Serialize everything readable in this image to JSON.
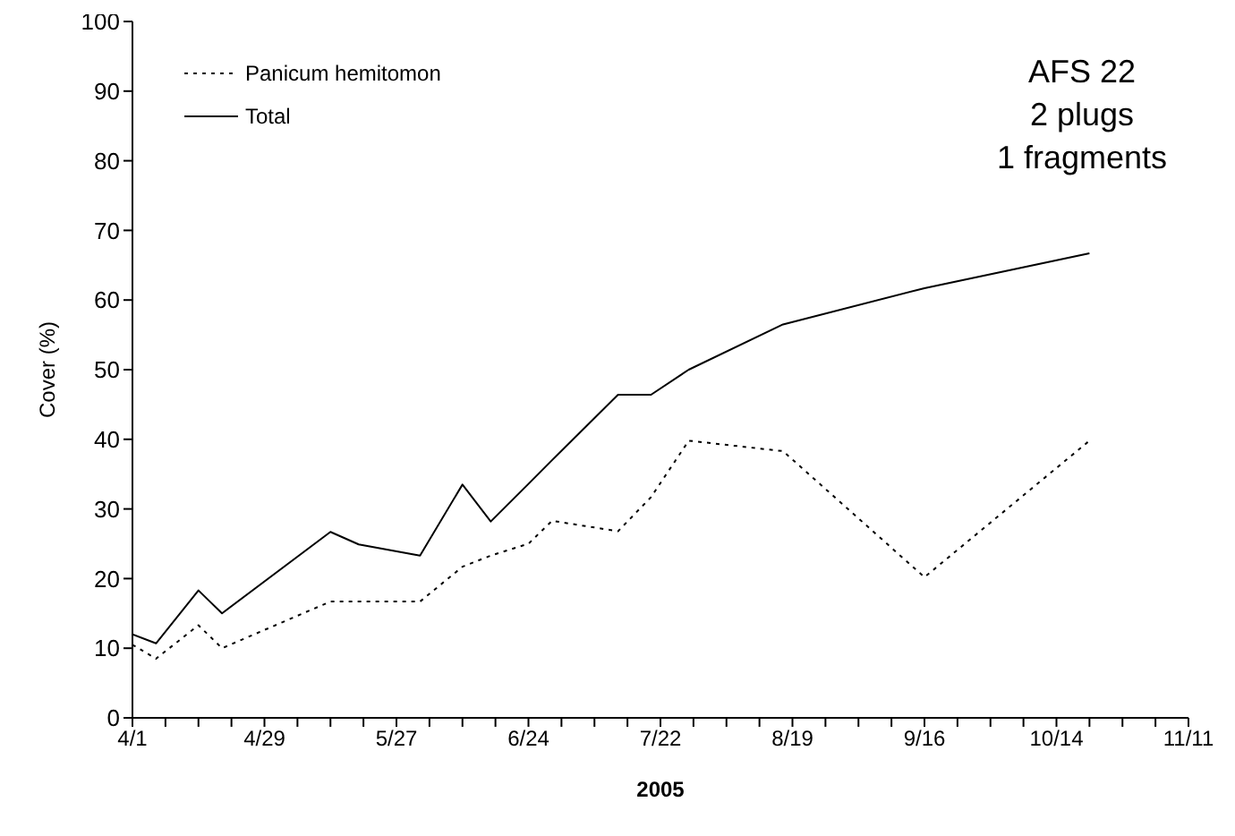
{
  "chart_data": {
    "type": "line",
    "xlabel": "2005",
    "ylabel": "Cover (%)",
    "annotations": [
      "AFS 22",
      "2 plugs",
      "1 fragments"
    ],
    "x": [
      "2005-04-01",
      "2005-04-06",
      "2005-04-15",
      "2005-04-20",
      "2005-05-13",
      "2005-05-19",
      "2005-06-01",
      "2005-06-10",
      "2005-06-16",
      "2005-06-24",
      "2005-06-29",
      "2005-07-13",
      "2005-07-20",
      "2005-07-28",
      "2005-08-17",
      "2005-09-16",
      "2005-10-21"
    ],
    "series": [
      {
        "name": "Panicum hemitomon",
        "color": "#000000",
        "line_style": "dotted",
        "values": [
          10.5,
          8.5,
          13.3,
          10,
          16.7,
          16.7,
          16.7,
          21.7,
          23.3,
          25,
          28.3,
          26.8,
          31.7,
          39.8,
          38.3,
          20.2,
          39.8
        ]
      },
      {
        "name": "Total",
        "color": "#000000",
        "line_style": "solid",
        "values": [
          12,
          10.7,
          18.3,
          15,
          26.7,
          24.9,
          23.3,
          33.5,
          28.2,
          33.6,
          37,
          46.4,
          46.4,
          50,
          56.5,
          61.7,
          66.7
        ]
      }
    ],
    "xlim": [
      "2005-04-01",
      "2005-11-11"
    ],
    "xticks": [
      {
        "value": "2005-04-01",
        "label": "4/1"
      },
      {
        "value": "2005-04-08",
        "label": null
      },
      {
        "value": "2005-04-15",
        "label": null
      },
      {
        "value": "2005-04-22",
        "label": null
      },
      {
        "value": "2005-04-29",
        "label": "4/29"
      },
      {
        "value": "2005-05-06",
        "label": null
      },
      {
        "value": "2005-05-13",
        "label": null
      },
      {
        "value": "2005-05-20",
        "label": null
      },
      {
        "value": "2005-05-27",
        "label": "5/27"
      },
      {
        "value": "2005-06-03",
        "label": null
      },
      {
        "value": "2005-06-10",
        "label": null
      },
      {
        "value": "2005-06-17",
        "label": null
      },
      {
        "value": "2005-06-24",
        "label": "6/24"
      },
      {
        "value": "2005-07-01",
        "label": null
      },
      {
        "value": "2005-07-08",
        "label": null
      },
      {
        "value": "2005-07-15",
        "label": null
      },
      {
        "value": "2005-07-22",
        "label": "7/22"
      },
      {
        "value": "2005-07-29",
        "label": null
      },
      {
        "value": "2005-08-05",
        "label": null
      },
      {
        "value": "2005-08-12",
        "label": null
      },
      {
        "value": "2005-08-19",
        "label": "8/19"
      },
      {
        "value": "2005-08-26",
        "label": null
      },
      {
        "value": "2005-09-02",
        "label": null
      },
      {
        "value": "2005-09-09",
        "label": null
      },
      {
        "value": "2005-09-16",
        "label": "9/16"
      },
      {
        "value": "2005-09-23",
        "label": null
      },
      {
        "value": "2005-09-30",
        "label": null
      },
      {
        "value": "2005-10-07",
        "label": null
      },
      {
        "value": "2005-10-14",
        "label": "10/14"
      },
      {
        "value": "2005-10-21",
        "label": null
      },
      {
        "value": "2005-10-28",
        "label": null
      },
      {
        "value": "2005-11-04",
        "label": null
      },
      {
        "value": "2005-11-11",
        "label": "11/11"
      }
    ],
    "ylim": [
      0,
      100
    ],
    "yticks": [
      0,
      10,
      20,
      30,
      40,
      50,
      60,
      70,
      80,
      90,
      100
    ],
    "legend": "top left",
    "grid": false,
    "marker": "none"
  }
}
